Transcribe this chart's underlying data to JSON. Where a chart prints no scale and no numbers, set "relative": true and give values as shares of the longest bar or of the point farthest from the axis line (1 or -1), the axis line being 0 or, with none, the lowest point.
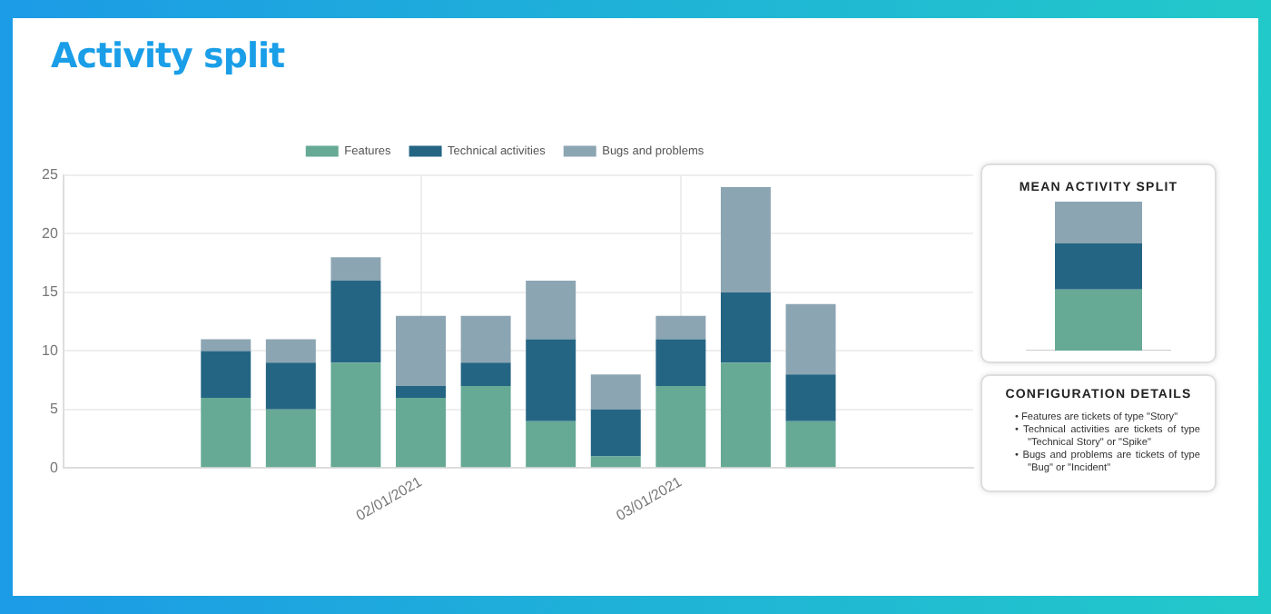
{
  "chart_data": [
    {
      "type": "bar",
      "title": "Activity split",
      "stacked": true,
      "legend": "top",
      "grid": true,
      "categories": [
        null,
        null,
        null,
        null,
        null,
        "02/01/2021",
        null,
        null,
        null,
        "03/01/2021",
        null,
        null,
        null,
        null
      ],
      "ylim": [
        0,
        25
      ],
      "yticks": [
        0,
        5,
        10,
        15,
        20,
        25
      ],
      "series": [
        {
          "name": "Features",
          "color": "#66a995",
          "values": [
            null,
            null,
            6,
            5,
            9,
            6,
            7,
            4,
            1,
            7,
            9,
            4,
            null,
            null
          ]
        },
        {
          "name": "Technical activities",
          "color": "#256584",
          "values": [
            null,
            null,
            4,
            4,
            7,
            1,
            2,
            7,
            4,
            4,
            6,
            4,
            null,
            null
          ]
        },
        {
          "name": "Bugs and problems",
          "color": "#8ca5b3",
          "values": [
            null,
            null,
            1,
            2,
            2,
            6,
            4,
            5,
            3,
            2,
            9,
            6,
            null,
            null
          ]
        }
      ]
    },
    {
      "type": "bar",
      "title": "MEAN ACTIVITY SPLIT",
      "stacked": true,
      "relative": true,
      "categories": [
        null
      ],
      "series": [
        {
          "color": "#66a995",
          "values": [
            0.41
          ]
        },
        {
          "color": "#256584",
          "values": [
            0.31
          ]
        },
        {
          "color": "#8ca5b3",
          "values": [
            0.28
          ]
        }
      ]
    },
    {
      "type": "other",
      "title": "CONFIGURATION DETAILS",
      "annotations": [
        "• Features are tickets of type \"Story\"",
        "• Technical activities are tickets of type \"Technical Story\" or \"Spike\"",
        "• Bugs and problems are tickets of type \"Bug\" or \"Incident\""
      ]
    }
  ]
}
